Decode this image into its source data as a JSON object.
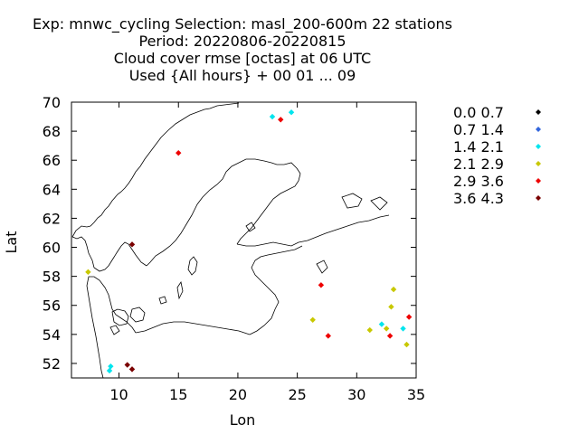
{
  "header": {
    "line1": "Exp: mnwc_cycling   Selection: masl_200-600m     22 stations",
    "line2": "Period: 20220806-20220815",
    "line3": "Cloud cover rmse [octas] at  06 UTC",
    "line4": "Used {All hours} + 00 01 ... 09"
  },
  "chart_data": {
    "type": "scatter",
    "xlabel": "Lon",
    "ylabel": "Lat",
    "xlim": [
      6,
      35
    ],
    "ylim": [
      51,
      70
    ],
    "xticks": [
      10,
      15,
      20,
      25,
      30,
      35
    ],
    "yticks": [
      52,
      54,
      56,
      58,
      60,
      62,
      64,
      66,
      68,
      70
    ],
    "grid": false,
    "legend_position": "right",
    "background_map": "coastlines of Scandinavia and the Baltic region",
    "series": [
      {
        "name": "0.0 0.7",
        "color": "#000000",
        "points": []
      },
      {
        "name": "0.7 1.4",
        "color": "#3366dd",
        "points": []
      },
      {
        "name": "1.4 2.1",
        "color": "#00e5ee",
        "points": [
          [
            9.2,
            51.5
          ],
          [
            9.3,
            51.8
          ],
          [
            22.9,
            69.0
          ],
          [
            24.5,
            69.3
          ],
          [
            32.1,
            54.7
          ],
          [
            33.9,
            54.4
          ]
        ]
      },
      {
        "name": "2.1 2.9",
        "color": "#c8c800",
        "points": [
          [
            7.4,
            58.3
          ],
          [
            26.3,
            55.0
          ],
          [
            31.1,
            54.3
          ],
          [
            32.5,
            54.4
          ],
          [
            32.9,
            55.9
          ],
          [
            33.1,
            57.1
          ],
          [
            34.2,
            53.3
          ]
        ]
      },
      {
        "name": "2.9 3.6",
        "color": "#ee0000",
        "points": [
          [
            15.0,
            66.5
          ],
          [
            23.6,
            68.8
          ],
          [
            27.0,
            57.4
          ],
          [
            27.6,
            53.9
          ],
          [
            32.8,
            53.9
          ],
          [
            34.4,
            55.2
          ]
        ]
      },
      {
        "name": "3.6 4.3",
        "color": "#7a0000",
        "points": [
          [
            11.1,
            60.2
          ],
          [
            10.7,
            51.9
          ],
          [
            11.1,
            51.6
          ]
        ]
      }
    ]
  }
}
